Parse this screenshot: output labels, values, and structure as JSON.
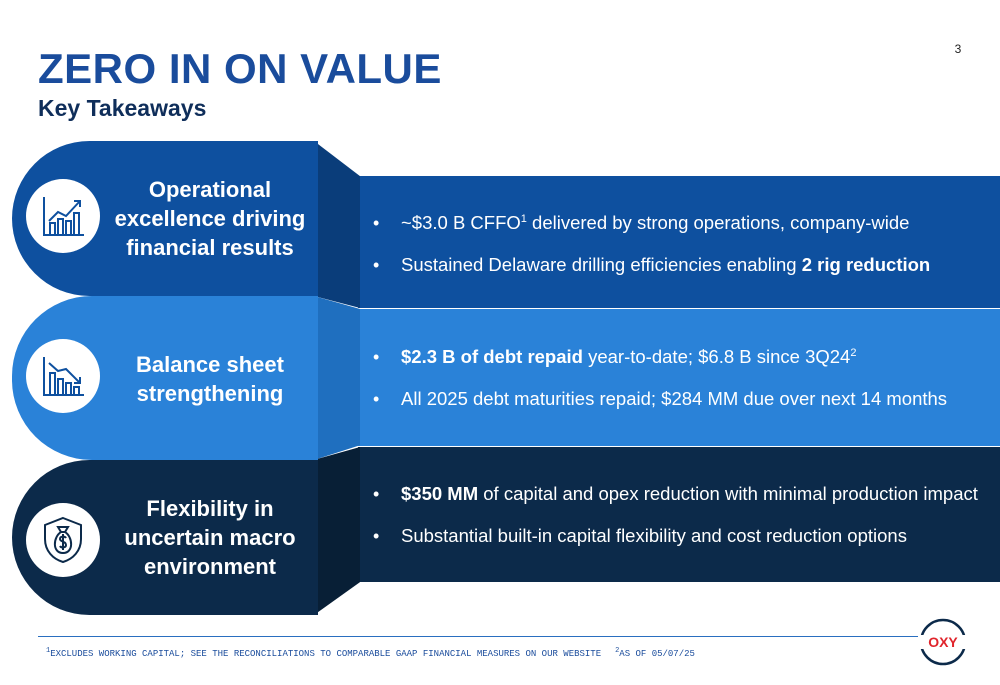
{
  "page_number": "3",
  "header": {
    "title": "ZERO IN ON VALUE",
    "subtitle": "Key Takeaways"
  },
  "sections": [
    {
      "icon": "rising-bar-chart-icon",
      "label": "Operational excellence driving financial results",
      "bullets": [
        {
          "pre": "~$3.0 B CFFO",
          "sup": "1",
          "rest": " delivered by strong operations, company-wide"
        },
        {
          "pre": "Sustained Delaware drilling efficiencies enabling ",
          "bold": "2 rig reduction"
        }
      ]
    },
    {
      "icon": "declining-bar-chart-icon",
      "label": "Balance sheet strengthening",
      "bullets": [
        {
          "bold": "$2.3 B of debt repaid",
          "rest": " year-to-date; $6.8 B since 3Q24",
          "sup": "2"
        },
        {
          "pre": "All 2025 debt maturities repaid; $284 MM due over next 14 months"
        }
      ]
    },
    {
      "icon": "money-bag-shield-icon",
      "label": "Flexibility in uncertain macro environment",
      "bullets": [
        {
          "bold": "$350 MM",
          "rest": " of capital and opex reduction with minimal production impact"
        },
        {
          "pre": "Substantial built-in capital flexibility and cost reduction options"
        }
      ]
    }
  ],
  "footnotes": {
    "note1_marker": "1",
    "note1": "EXCLUDES WORKING CAPITAL; SEE THE RECONCILIATIONS TO COMPARABLE GAAP FINANCIAL MEASURES ON OUR WEBSITE",
    "note2_marker": "2",
    "note2": "AS OF 05/07/25"
  },
  "logo_text": "OXY",
  "colors": {
    "title_blue": "#1a4c9c",
    "band_dark_blue": "#0e509f",
    "band_light_blue": "#2a82d8",
    "band_navy": "#0c2a4a",
    "logo_red": "#e0242b"
  }
}
